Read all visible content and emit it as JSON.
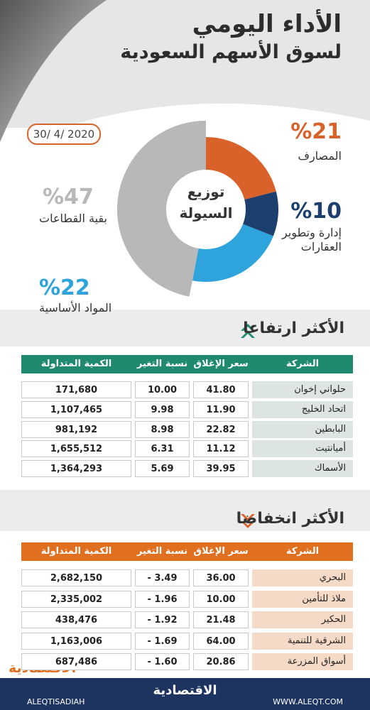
{
  "header": {
    "title": "الأداء اليومي",
    "subtitle": "لسوق الأسهم السعودية",
    "date": "30/ 4/ 2020"
  },
  "chart_data": {
    "type": "pie",
    "title": "توزيع السيولة",
    "categories": [
      "المصارف",
      "إدارة وتطوير العقارات",
      "المواد الأساسية",
      "بقية القطاعات"
    ],
    "values": [
      21,
      10,
      22,
      47
    ],
    "value_labels": [
      "%21",
      "%10",
      "%22",
      "%47"
    ],
    "colors": [
      "#d9622b",
      "#1c3f6e",
      "#2ea3dc",
      "#b8b8b8"
    ]
  },
  "rising": {
    "title": "الأكثر ارتفاعا",
    "columns": [
      "الشركة",
      "سعر الإغلاق",
      "نسبة التغير %",
      "الكمية المتداولة"
    ],
    "rows": [
      [
        "حلواني إخوان",
        "41.80",
        "10.00",
        "171,680"
      ],
      [
        "اتحاد الخليج",
        "11.90",
        "9.98",
        "1,107,465"
      ],
      [
        "البابطين",
        "22.82",
        "8.98",
        "981,192"
      ],
      [
        "أميانتيت",
        "11.12",
        "6.31",
        "1,655,512"
      ],
      [
        "الأسماك",
        "39.95",
        "5.69",
        "1,364,293"
      ]
    ]
  },
  "falling": {
    "title": "الأكثر انخفاضا",
    "columns": [
      "الشركة",
      "سعر الإغلاق",
      "نسبة التغير %",
      "الكمية المتداولة"
    ],
    "rows": [
      [
        "البحري",
        "36.00",
        "- 3.49",
        "2,682,150"
      ],
      [
        "ملاذ للتأمين",
        "10.00",
        "- 1.96",
        "2,335,002"
      ],
      [
        "الحكير",
        "21.48",
        "- 1.92",
        "438,476"
      ],
      [
        "الشرقية للتنمية",
        "64.00",
        "- 1.69",
        "1,163,006"
      ],
      [
        "أسواق المزرعة",
        "20.86",
        "- 1.60",
        "687,486"
      ]
    ]
  },
  "footer": {
    "brand": "الاقتصادية",
    "handle": "ALEQTISADIAH",
    "website": "WWW.ALEQT.COM"
  }
}
